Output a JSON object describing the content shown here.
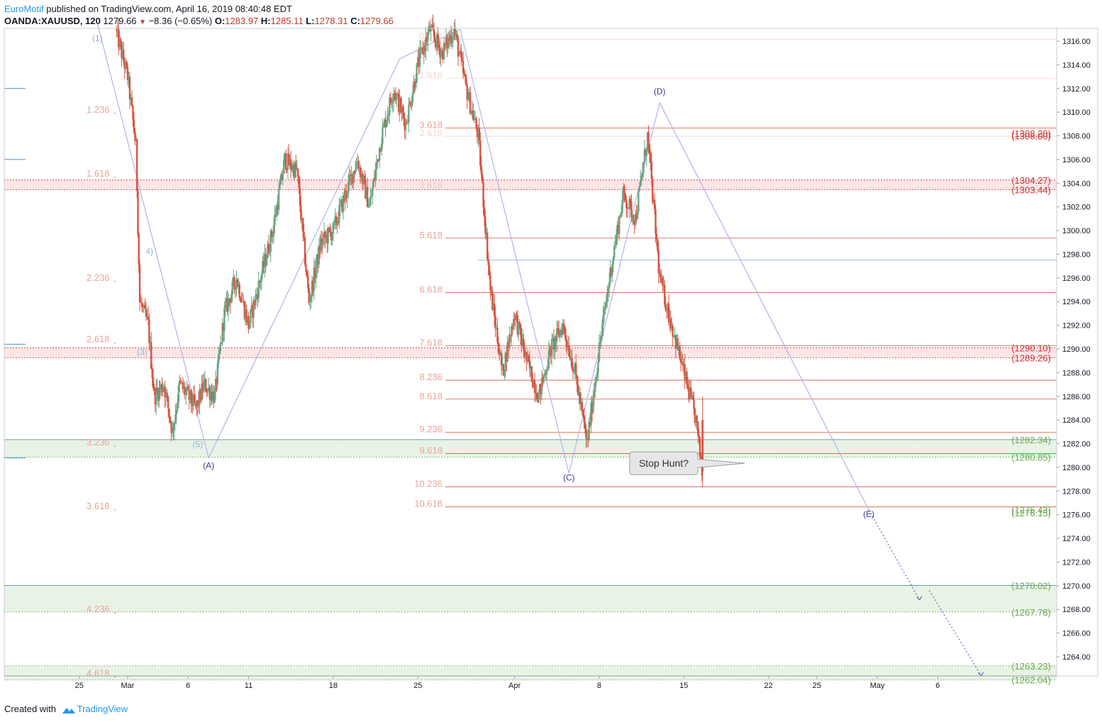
{
  "header": {
    "author": "EuroMotif",
    "published": "published on TradingView.com, April 16, 2019 08:40:48 EDT"
  },
  "quote": {
    "symbol": "OANDA:XAUUSD, 120",
    "last": "1279.66",
    "change": "−8.36 (−0.65%)",
    "o_label": "O:",
    "o": "1283.97",
    "h_label": "H:",
    "h": "1285.11",
    "l_label": "L:",
    "l": "1278.31",
    "c_label": "C:",
    "c": "1279.66"
  },
  "footer": {
    "created": "Created with",
    "brand": "TradingView"
  },
  "colors": {
    "up": "#6ba583",
    "down": "#d75442",
    "fib": "#e8a49a",
    "wave": "#b3b3e6",
    "label_blue": "#8fb3d9",
    "green_label": "#6aa84f",
    "red_label": "#cc3333",
    "zone_green": "#e8f3e6",
    "zone_red": "#fde6e6"
  },
  "chart_data": {
    "type": "candlestick",
    "symbol": "OANDA:XAUUSD",
    "timeframe": "120",
    "ylim": [
      1262,
      1318
    ],
    "y_ticks": [
      "1316.00",
      "1314.00",
      "1312.00",
      "1310.00",
      "1308.00",
      "1306.00",
      "1304.00",
      "1302.00",
      "1300.00",
      "1298.00",
      "1296.00",
      "1294.00",
      "1292.00",
      "1290.00",
      "1288.00",
      "1286.00",
      "1284.00",
      "1282.00",
      "1280.00",
      "1278.00",
      "1276.00",
      "1274.00",
      "1272.00",
      "1270.00",
      "1268.00",
      "1266.00",
      "1264.00"
    ],
    "x_ticks": [
      {
        "label": "25",
        "day": -4
      },
      {
        "label": "Mar",
        "day": 0
      },
      {
        "label": "6",
        "day": 5
      },
      {
        "label": "11",
        "day": 10
      },
      {
        "label": "18",
        "day": 17
      },
      {
        "label": "25",
        "day": 24
      },
      {
        "label": "Apr",
        "day": 32
      },
      {
        "label": "8",
        "day": 39
      },
      {
        "label": "15",
        "day": 46
      },
      {
        "label": "22",
        "day": 53
      },
      {
        "label": "25",
        "day": 57
      },
      {
        "label": "May",
        "day": 62
      },
      {
        "label": "6",
        "day": 67
      }
    ],
    "price_path": [
      {
        "day": -1,
        "price": 1317
      },
      {
        "day": 0,
        "price": 1313
      },
      {
        "day": 0.7,
        "price": 1307
      },
      {
        "day": 1,
        "price": 1294
      },
      {
        "day": 1.7,
        "price": 1292
      },
      {
        "day": 2.2,
        "price": 1286
      },
      {
        "day": 3,
        "price": 1287
      },
      {
        "day": 3.7,
        "price": 1283
      },
      {
        "day": 4.3,
        "price": 1287
      },
      {
        "day": 5,
        "price": 1286
      },
      {
        "day": 5.7,
        "price": 1285
      },
      {
        "day": 6.3,
        "price": 1287
      },
      {
        "day": 7.2,
        "price": 1286
      },
      {
        "day": 8,
        "price": 1293
      },
      {
        "day": 9,
        "price": 1296
      },
      {
        "day": 10,
        "price": 1292
      },
      {
        "day": 11,
        "price": 1296
      },
      {
        "day": 12,
        "price": 1300
      },
      {
        "day": 13,
        "price": 1306
      },
      {
        "day": 14,
        "price": 1305
      },
      {
        "day": 15,
        "price": 1294
      },
      {
        "day": 16,
        "price": 1299
      },
      {
        "day": 17,
        "price": 1300
      },
      {
        "day": 18,
        "price": 1303
      },
      {
        "day": 19,
        "price": 1306
      },
      {
        "day": 20,
        "price": 1302
      },
      {
        "day": 21,
        "price": 1308
      },
      {
        "day": 22,
        "price": 1312
      },
      {
        "day": 23,
        "price": 1309
      },
      {
        "day": 24,
        "price": 1314
      },
      {
        "day": 25,
        "price": 1317
      },
      {
        "day": 26,
        "price": 1315
      },
      {
        "day": 27,
        "price": 1317
      },
      {
        "day": 28,
        "price": 1312
      },
      {
        "day": 29,
        "price": 1308
      },
      {
        "day": 30,
        "price": 1295
      },
      {
        "day": 31,
        "price": 1288
      },
      {
        "day": 32,
        "price": 1293
      },
      {
        "day": 33,
        "price": 1289
      },
      {
        "day": 34,
        "price": 1286
      },
      {
        "day": 35,
        "price": 1290
      },
      {
        "day": 36,
        "price": 1292
      },
      {
        "day": 37,
        "price": 1288
      },
      {
        "day": 38,
        "price": 1282
      },
      {
        "day": 39,
        "price": 1290
      },
      {
        "day": 40,
        "price": 1297
      },
      {
        "day": 41,
        "price": 1303
      },
      {
        "day": 42,
        "price": 1301
      },
      {
        "day": 43,
        "price": 1308
      },
      {
        "day": 44,
        "price": 1296
      },
      {
        "day": 45,
        "price": 1292
      },
      {
        "day": 46,
        "price": 1288
      },
      {
        "day": 47,
        "price": 1284
      },
      {
        "day": 47.5,
        "price": 1279.7
      }
    ],
    "zones": [
      {
        "top": 1282.34,
        "bottom": 1280.85,
        "fill": "#e8f3e6",
        "line": "#6aa84f"
      },
      {
        "top": 1304.27,
        "bottom": 1303.44,
        "fill": "#fde6e6",
        "line": "#cc3333"
      },
      {
        "top": 1290.1,
        "bottom": 1289.26,
        "fill": "#fde6e6",
        "line": "#cc3333"
      },
      {
        "top": 1270.02,
        "bottom": 1267.78,
        "fill": "#e8f3e6",
        "line": "#6aa84f"
      },
      {
        "top": 1263.23,
        "bottom": 1262.04,
        "fill": "#e8f3e6",
        "line": "#6aa84f"
      }
    ],
    "price_labels": [
      {
        "text": "(1308.20)",
        "price": 1308.2,
        "color": "#cc3333"
      },
      {
        "text": "(1308.00)",
        "price": 1308.0,
        "color": "#cc3333"
      },
      {
        "text": "(1304.27)",
        "price": 1304.27,
        "color": "#cc3333"
      },
      {
        "text": "(1303.44)",
        "price": 1303.44,
        "color": "#cc3333"
      },
      {
        "text": "(1290.10)",
        "price": 1290.1,
        "color": "#cc3333"
      },
      {
        "text": "(1289.26)",
        "price": 1289.26,
        "color": "#cc3333"
      },
      {
        "text": "(1282.34)",
        "price": 1282.34,
        "color": "#6aa84f"
      },
      {
        "text": "(1280.85)",
        "price": 1280.85,
        "color": "#6aa84f"
      },
      {
        "text": "(1276.43)",
        "price": 1276.43,
        "color": "#6aa84f"
      },
      {
        "text": "(1276.15)",
        "price": 1276.15,
        "color": "#6aa84f"
      },
      {
        "text": "(1270.02)",
        "price": 1270.02,
        "color": "#6aa84f"
      },
      {
        "text": "(1267.78)",
        "price": 1267.78,
        "color": "#6aa84f"
      },
      {
        "text": "(1263.23)",
        "price": 1263.23,
        "color": "#6aa84f"
      },
      {
        "text": "(1262.04)",
        "price": 1262.04,
        "color": "#6aa84f"
      }
    ],
    "fib_left": [
      {
        "text": "1.236",
        "price": 1310.2
      },
      {
        "text": "1.618",
        "price": 1304.8
      },
      {
        "text": "2.236",
        "price": 1296.0
      },
      {
        "text": "2.618",
        "price": 1290.8
      },
      {
        "text": "3.236",
        "price": 1282.1
      },
      {
        "text": "3.618",
        "price": 1276.7
      },
      {
        "text": "4.236",
        "price": 1268.0
      },
      {
        "text": "4.618",
        "price": 1262.6
      }
    ],
    "fib_right": [
      {
        "text": "0.618",
        "price": 1316.4,
        "faded": true
      },
      {
        "text": "1.618",
        "price": 1313.1,
        "faded": true
      },
      {
        "text": "2.618",
        "price": 1308.2,
        "faded": true
      },
      {
        "text": "3.618",
        "price": 1308.9,
        "faded": false
      },
      {
        "text": "3.618",
        "price": 1303.8,
        "faded": true
      },
      {
        "text": "5.618",
        "price": 1299.6,
        "faded": false
      },
      {
        "text": "6.618",
        "price": 1295.0,
        "faded": false
      },
      {
        "text": "7.618",
        "price": 1290.5,
        "faded": false
      },
      {
        "text": "8.236",
        "price": 1287.6,
        "faded": false
      },
      {
        "text": "8.618",
        "price": 1286.0,
        "faded": false
      },
      {
        "text": "9.236",
        "price": 1283.2,
        "faded": false
      },
      {
        "text": "9.618",
        "price": 1281.4,
        "faded": false
      },
      {
        "text": "10.236",
        "price": 1278.6,
        "faded": false
      },
      {
        "text": "10.618",
        "price": 1276.9,
        "faded": false
      }
    ],
    "wave_labels": [
      {
        "text": "(1)",
        "day": -2.5,
        "price": 1316.0,
        "color": "#8fb3d9"
      },
      {
        "text": "(3)",
        "day": 1.2,
        "price": 1289.5,
        "color": "#8fb3d9"
      },
      {
        "text": "4)",
        "day": 1.8,
        "price": 1298.0,
        "color": "#8fb3d9"
      },
      {
        "text": "(5)",
        "day": 5.8,
        "price": 1281.7,
        "color": "#8fb3d9"
      },
      {
        "text": "(A)",
        "day": 6.7,
        "price": 1279.9,
        "color": "#3d3d8f"
      },
      {
        "text": "(C)",
        "day": 36.5,
        "price": 1278.9,
        "color": "#3d3d8f"
      },
      {
        "text": "(D)",
        "day": 44.0,
        "price": 1311.5,
        "color": "#3d3d8f"
      },
      {
        "text": "(E)",
        "day": 61.3,
        "price": 1275.8,
        "color": "#3d3d8f"
      }
    ],
    "wave_path": [
      {
        "day": -2.5,
        "price": 1317.5
      },
      {
        "day": 6.7,
        "price": 1280.8
      },
      {
        "day": 22.5,
        "price": 1314.5
      },
      {
        "day": 27.5,
        "price": 1317.0
      },
      {
        "day": 36.5,
        "price": 1279.5
      },
      {
        "day": 44.0,
        "price": 1310.8
      },
      {
        "day": 61.3,
        "price": 1276.4
      }
    ],
    "projection": [
      {
        "from_day": 61.3,
        "from_price": 1276.4,
        "to_day": 65.5,
        "to_price": 1268.8
      },
      {
        "from_day": 66.3,
        "from_price": 1269.6,
        "to_day": 70.6,
        "to_price": 1262.4
      }
    ],
    "callout": {
      "text": "Stop Hunt?",
      "day": 47.6,
      "price": 1280.1
    }
  }
}
